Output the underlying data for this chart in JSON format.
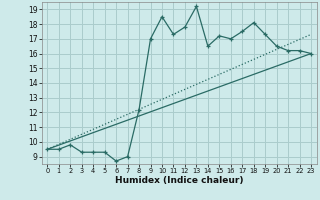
{
  "xlabel": "Humidex (Indice chaleur)",
  "bg_color": "#ceeaea",
  "grid_color": "#aacccc",
  "line_color": "#2a6b65",
  "xlim": [
    -0.5,
    23.5
  ],
  "ylim": [
    8.5,
    19.5
  ],
  "xticks": [
    0,
    1,
    2,
    3,
    4,
    5,
    6,
    7,
    8,
    9,
    10,
    11,
    12,
    13,
    14,
    15,
    16,
    17,
    18,
    19,
    20,
    21,
    22,
    23
  ],
  "yticks": [
    9,
    10,
    11,
    12,
    13,
    14,
    15,
    16,
    17,
    18,
    19
  ],
  "series1_x": [
    0,
    1,
    2,
    3,
    4,
    5,
    6,
    7,
    8,
    9,
    10,
    11,
    12,
    13,
    14,
    15,
    16,
    17,
    18,
    19,
    20,
    21,
    22,
    23
  ],
  "series1_y": [
    9.5,
    9.5,
    9.8,
    9.3,
    9.3,
    9.3,
    8.7,
    9.0,
    12.2,
    17.0,
    18.5,
    17.3,
    17.8,
    19.2,
    16.5,
    17.2,
    17.0,
    17.5,
    18.1,
    17.3,
    16.5,
    16.2,
    16.2,
    16.0
  ],
  "series2_x": [
    0,
    23
  ],
  "series2_y": [
    9.5,
    17.3
  ],
  "series3_x": [
    0,
    23
  ],
  "series3_y": [
    9.5,
    16.0
  ],
  "marker_size": 3.5,
  "linewidth": 0.9
}
